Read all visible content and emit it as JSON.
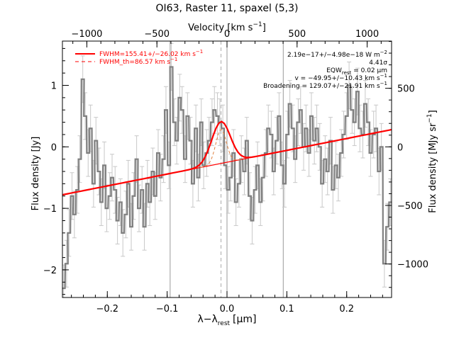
{
  "chart_data": {
    "type": "line",
    "title": "OI63, Raster 11, spaxel (5,3)",
    "xlabel": "λ−λ",
    "xlabel_sub": "rest",
    "xlabel_unit": "[μm]",
    "ylabel": "Flux density [Jy]",
    "ylabel_right": "Flux density [MJy sr",
    "ylabel_right_sup": "−1",
    "ylabel_right_end": "]",
    "top_axis_label": "Velocity [km s",
    "top_axis_label_sup": "−1",
    "top_axis_label_end": "]",
    "xlim": [
      -0.275,
      0.275
    ],
    "ylim": [
      -2.45,
      1.72
    ],
    "x_ticks": [
      -0.2,
      -0.1,
      0.0,
      0.1,
      0.2
    ],
    "x_tick_labels": [
      "−0.2",
      "−0.1",
      "0.0",
      "0.1",
      "0.2"
    ],
    "y_ticks": [
      -2,
      -1,
      0,
      1
    ],
    "y_tick_labels": [
      "−2",
      "−1",
      "0",
      "1"
    ],
    "top_ticks": [
      -1000,
      -500,
      0,
      500,
      1000
    ],
    "top_tick_labels": [
      "−1000",
      "−500",
      "0",
      "500",
      "1000"
    ],
    "right_ticks": [
      -1000,
      -500,
      0,
      500
    ],
    "right_tick_labels": [
      "−1000",
      "−500",
      "0",
      "500"
    ],
    "vertical_lines_x": [
      -0.095,
      0.0,
      0.094
    ],
    "center_dashed_x": -0.01,
    "legend": [
      {
        "label": "FWHM=155.41+/−26.02 km s",
        "sup": "−1",
        "style": "solid",
        "color": "#ff0000"
      },
      {
        "label": "FWHM_th=86.57 km s",
        "sup": "−1",
        "style": "dashed",
        "color": "#ff0000"
      }
    ],
    "annotations": [
      {
        "text": "2.19e−17+/−4.98e−18 W m",
        "sup": "−2"
      },
      {
        "text": "4.41σ"
      },
      {
        "text": "EQW",
        "sub": "rest",
        "tail": " = 0.02 μm"
      },
      {
        "text": "v = −49.95+/−10.43 km s",
        "sup": "−1"
      },
      {
        "text": "Broadening = 129.07+/−21.91 km s",
        "sup": "−1"
      }
    ],
    "baseline": {
      "x": [
        -0.275,
        0.275
      ],
      "y": [
        -0.78,
        0.28
      ]
    },
    "gaussian": {
      "center": -0.01,
      "sigma": 0.0155,
      "amplitude": 0.68
    },
    "gaussian_th": {
      "center": -0.01,
      "sigma": 0.0088,
      "amplitude": 0.55
    },
    "series": [
      {
        "style": "steps",
        "x": [
          -0.273,
          -0.268,
          -0.264,
          -0.259,
          -0.255,
          -0.25,
          -0.246,
          -0.241,
          -0.237,
          -0.232,
          -0.228,
          -0.223,
          -0.219,
          -0.214,
          -0.21,
          -0.205,
          -0.201,
          -0.196,
          -0.192,
          -0.187,
          -0.183,
          -0.178,
          -0.174,
          -0.169,
          -0.165,
          -0.16,
          -0.156,
          -0.151,
          -0.147,
          -0.142,
          -0.138,
          -0.133,
          -0.129,
          -0.124,
          -0.12,
          -0.115,
          -0.111,
          -0.106,
          -0.102,
          -0.097,
          -0.093,
          -0.088,
          -0.084,
          -0.079,
          -0.075,
          -0.07,
          -0.066,
          -0.061,
          -0.057,
          -0.052,
          -0.048,
          -0.043,
          -0.039,
          -0.034,
          -0.03,
          -0.025,
          -0.021,
          -0.016,
          -0.012,
          -0.007,
          -0.003,
          0.002,
          0.006,
          0.011,
          0.015,
          0.02,
          0.024,
          0.029,
          0.033,
          0.038,
          0.042,
          0.047,
          0.051,
          0.056,
          0.06,
          0.065,
          0.069,
          0.074,
          0.078,
          0.083,
          0.087,
          0.092,
          0.096,
          0.101,
          0.105,
          0.11,
          0.114,
          0.119,
          0.123,
          0.128,
          0.132,
          0.137,
          0.141,
          0.146,
          0.15,
          0.155,
          0.159,
          0.164,
          0.168,
          0.173,
          0.177,
          0.182,
          0.186,
          0.191,
          0.195,
          0.2,
          0.204,
          0.209,
          0.213,
          0.218,
          0.222,
          0.227,
          0.231,
          0.236,
          0.24,
          0.245,
          0.249,
          0.254,
          0.258,
          0.263,
          0.268,
          0.273
        ],
        "y": [
          -2.3,
          -1.9,
          -1.4,
          -0.8,
          -1.1,
          -0.7,
          -0.2,
          1.1,
          0.5,
          -0.1,
          0.3,
          -0.6,
          0.1,
          -0.4,
          -0.9,
          -0.3,
          -1.0,
          -0.8,
          -0.5,
          -0.7,
          -1.2,
          -0.9,
          -1.4,
          -1.1,
          -0.6,
          -1.3,
          -0.8,
          -0.2,
          -1.0,
          -0.7,
          -1.3,
          -0.6,
          -0.9,
          -0.4,
          -0.8,
          -0.1,
          -0.5,
          -0.2,
          0.6,
          -0.3,
          1.3,
          0.4,
          0.1,
          0.8,
          0.6,
          -0.2,
          0.5,
          0.1,
          -0.6,
          0.3,
          -0.5,
          0.4,
          -0.3,
          -0.1,
          0.1,
          0.4,
          0.6,
          0.5,
          0.4,
          0.3,
          -0.3,
          -0.7,
          -0.5,
          -0.1,
          -0.9,
          -0.6,
          -0.2,
          -0.4,
          0.1,
          -0.8,
          -1.2,
          -0.7,
          -0.3,
          -0.9,
          -0.5,
          -0.1,
          0.3,
          0.2,
          -0.4,
          0.1,
          0.5,
          -0.3,
          -0.6,
          0.2,
          0.7,
          0.3,
          -0.2,
          0.4,
          0.6,
          0.0,
          0.3,
          -0.1,
          0.5,
          0.1,
          0.3,
          0.0,
          -0.6,
          -0.2,
          -0.4,
          0.1,
          -0.7,
          -0.3,
          -0.5,
          -0.1,
          0.2,
          0.5,
          1.0,
          0.6,
          0.4,
          0.9,
          0.3,
          0.2,
          0.7,
          0.4,
          -0.1,
          0.2,
          0.3,
          -0.4,
          0.0,
          -1.9,
          -1.3,
          -0.9
        ],
        "err": 0.38
      }
    ]
  }
}
